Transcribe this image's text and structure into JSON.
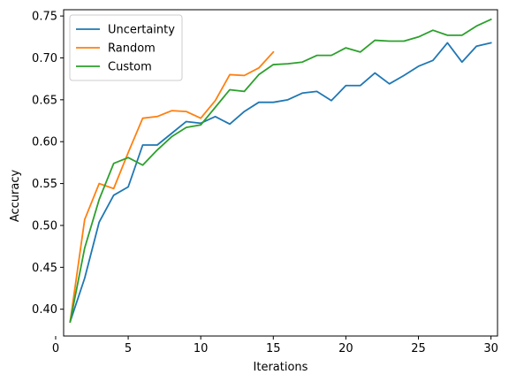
{
  "chart_data": {
    "type": "line",
    "title": "",
    "xlabel": "Iterations",
    "ylabel": "Accuracy",
    "xlim": [
      0.55,
      30.45
    ],
    "ylim": [
      0.368,
      0.7575
    ],
    "xticks": [
      0,
      5,
      10,
      15,
      20,
      25,
      30
    ],
    "yticks": [
      0.4,
      0.45,
      0.5,
      0.55,
      0.6,
      0.65,
      0.7,
      0.75
    ],
    "xtick_labels": [
      "0",
      "5",
      "10",
      "15",
      "20",
      "25",
      "30"
    ],
    "ytick_labels": [
      "0.40",
      "0.45",
      "0.50",
      "0.55",
      "0.60",
      "0.65",
      "0.70",
      "0.75"
    ],
    "grid": false,
    "legend_position": "top-left",
    "series": [
      {
        "name": "Uncertainty",
        "color": "#1f77b4",
        "x": [
          1,
          2,
          3,
          4,
          5,
          6,
          7,
          8,
          9,
          10,
          11,
          12,
          13,
          14,
          15,
          16,
          17,
          18,
          19,
          20,
          21,
          22,
          23,
          24,
          25,
          26,
          27,
          28,
          29,
          30
        ],
        "y": [
          0.385,
          0.437,
          0.504,
          0.536,
          0.546,
          0.596,
          0.596,
          0.61,
          0.624,
          0.622,
          0.63,
          0.621,
          0.636,
          0.647,
          0.647,
          0.65,
          0.658,
          0.66,
          0.649,
          0.667,
          0.667,
          0.682,
          0.669,
          0.679,
          0.69,
          0.697,
          0.718,
          0.695,
          0.714,
          0.718
        ]
      },
      {
        "name": "Random",
        "color": "#ff7f0e",
        "x": [
          1,
          2,
          3,
          4,
          5,
          6,
          7,
          8,
          9,
          10,
          11,
          12,
          13,
          14,
          15
        ],
        "y": [
          0.385,
          0.507,
          0.55,
          0.544,
          0.587,
          0.628,
          0.63,
          0.637,
          0.636,
          0.628,
          0.649,
          0.68,
          0.679,
          0.688,
          0.707
        ]
      },
      {
        "name": "Custom",
        "color": "#2ca02c",
        "x": [
          1,
          2,
          3,
          4,
          5,
          6,
          7,
          8,
          9,
          10,
          11,
          12,
          13,
          14,
          15,
          16,
          17,
          18,
          19,
          20,
          21,
          22,
          23,
          24,
          25,
          26,
          27,
          28,
          29,
          30
        ],
        "y": [
          0.385,
          0.473,
          0.531,
          0.574,
          0.581,
          0.572,
          0.59,
          0.606,
          0.617,
          0.62,
          0.641,
          0.662,
          0.66,
          0.68,
          0.692,
          0.693,
          0.695,
          0.703,
          0.703,
          0.712,
          0.707,
          0.721,
          0.72,
          0.72,
          0.725,
          0.733,
          0.727,
          0.727,
          0.738,
          0.746
        ]
      }
    ]
  }
}
